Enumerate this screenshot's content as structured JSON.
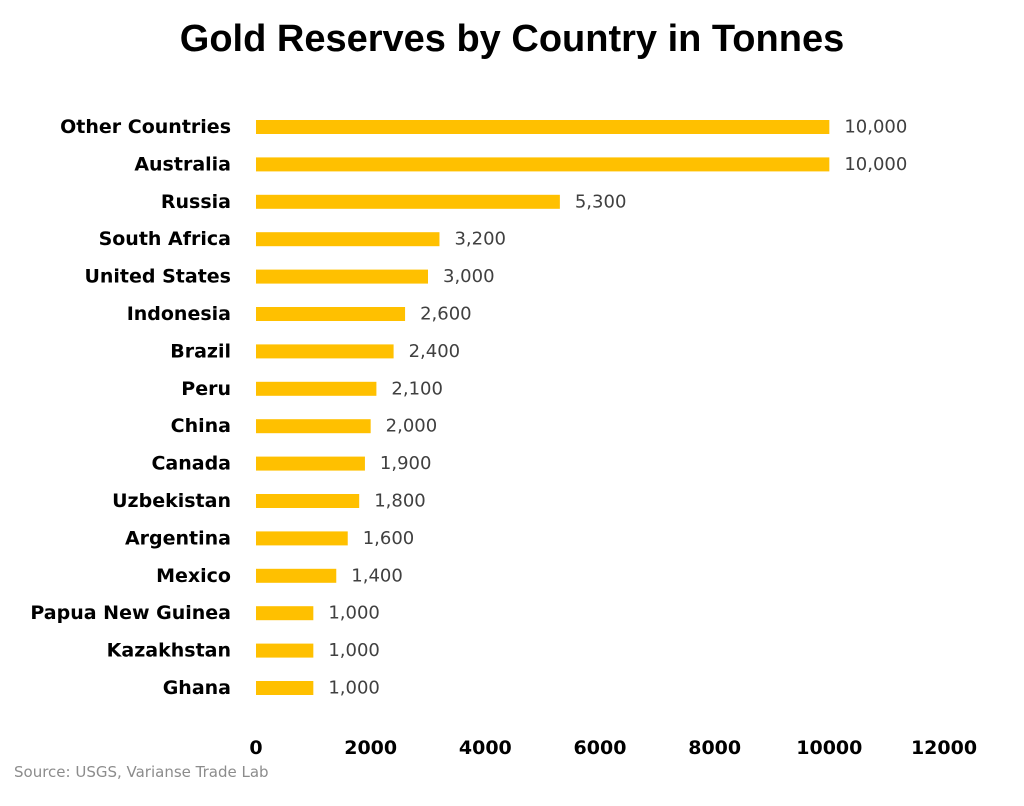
{
  "chart_data": {
    "type": "bar",
    "orientation": "horizontal",
    "title": "Gold Reserves by Country in Tonnes",
    "source": "Source: USGS, Varianse Trade Lab",
    "categories": [
      "Other Countries",
      "Australia",
      "Russia",
      "South Africa",
      "United States",
      "Indonesia",
      "Brazil",
      "Peru",
      "China",
      "Canada",
      "Uzbekistan",
      "Argentina",
      "Mexico",
      "Papua New Guinea",
      "Kazakhstan",
      "Ghana"
    ],
    "values": [
      10000,
      10000,
      5300,
      3200,
      3000,
      2600,
      2400,
      2100,
      2000,
      1900,
      1800,
      1600,
      1400,
      1000,
      1000,
      1000
    ],
    "value_labels": [
      "10,000",
      "10,000",
      "5,300",
      "3,200",
      "3,000",
      "2,600",
      "2,400",
      "2,100",
      "2,000",
      "1,900",
      "1,800",
      "1,600",
      "1,400",
      "1,000",
      "1,000",
      "1,000"
    ],
    "xlim": [
      0,
      12000
    ],
    "xticks": [
      0,
      2000,
      4000,
      6000,
      8000,
      10000,
      12000
    ],
    "xtick_labels": [
      "0",
      "2000",
      "4000",
      "6000",
      "8000",
      "10000",
      "12000"
    ],
    "xlabel": "",
    "ylabel": "",
    "grid": false,
    "legend": "none",
    "bar_color": "#FFC000"
  }
}
